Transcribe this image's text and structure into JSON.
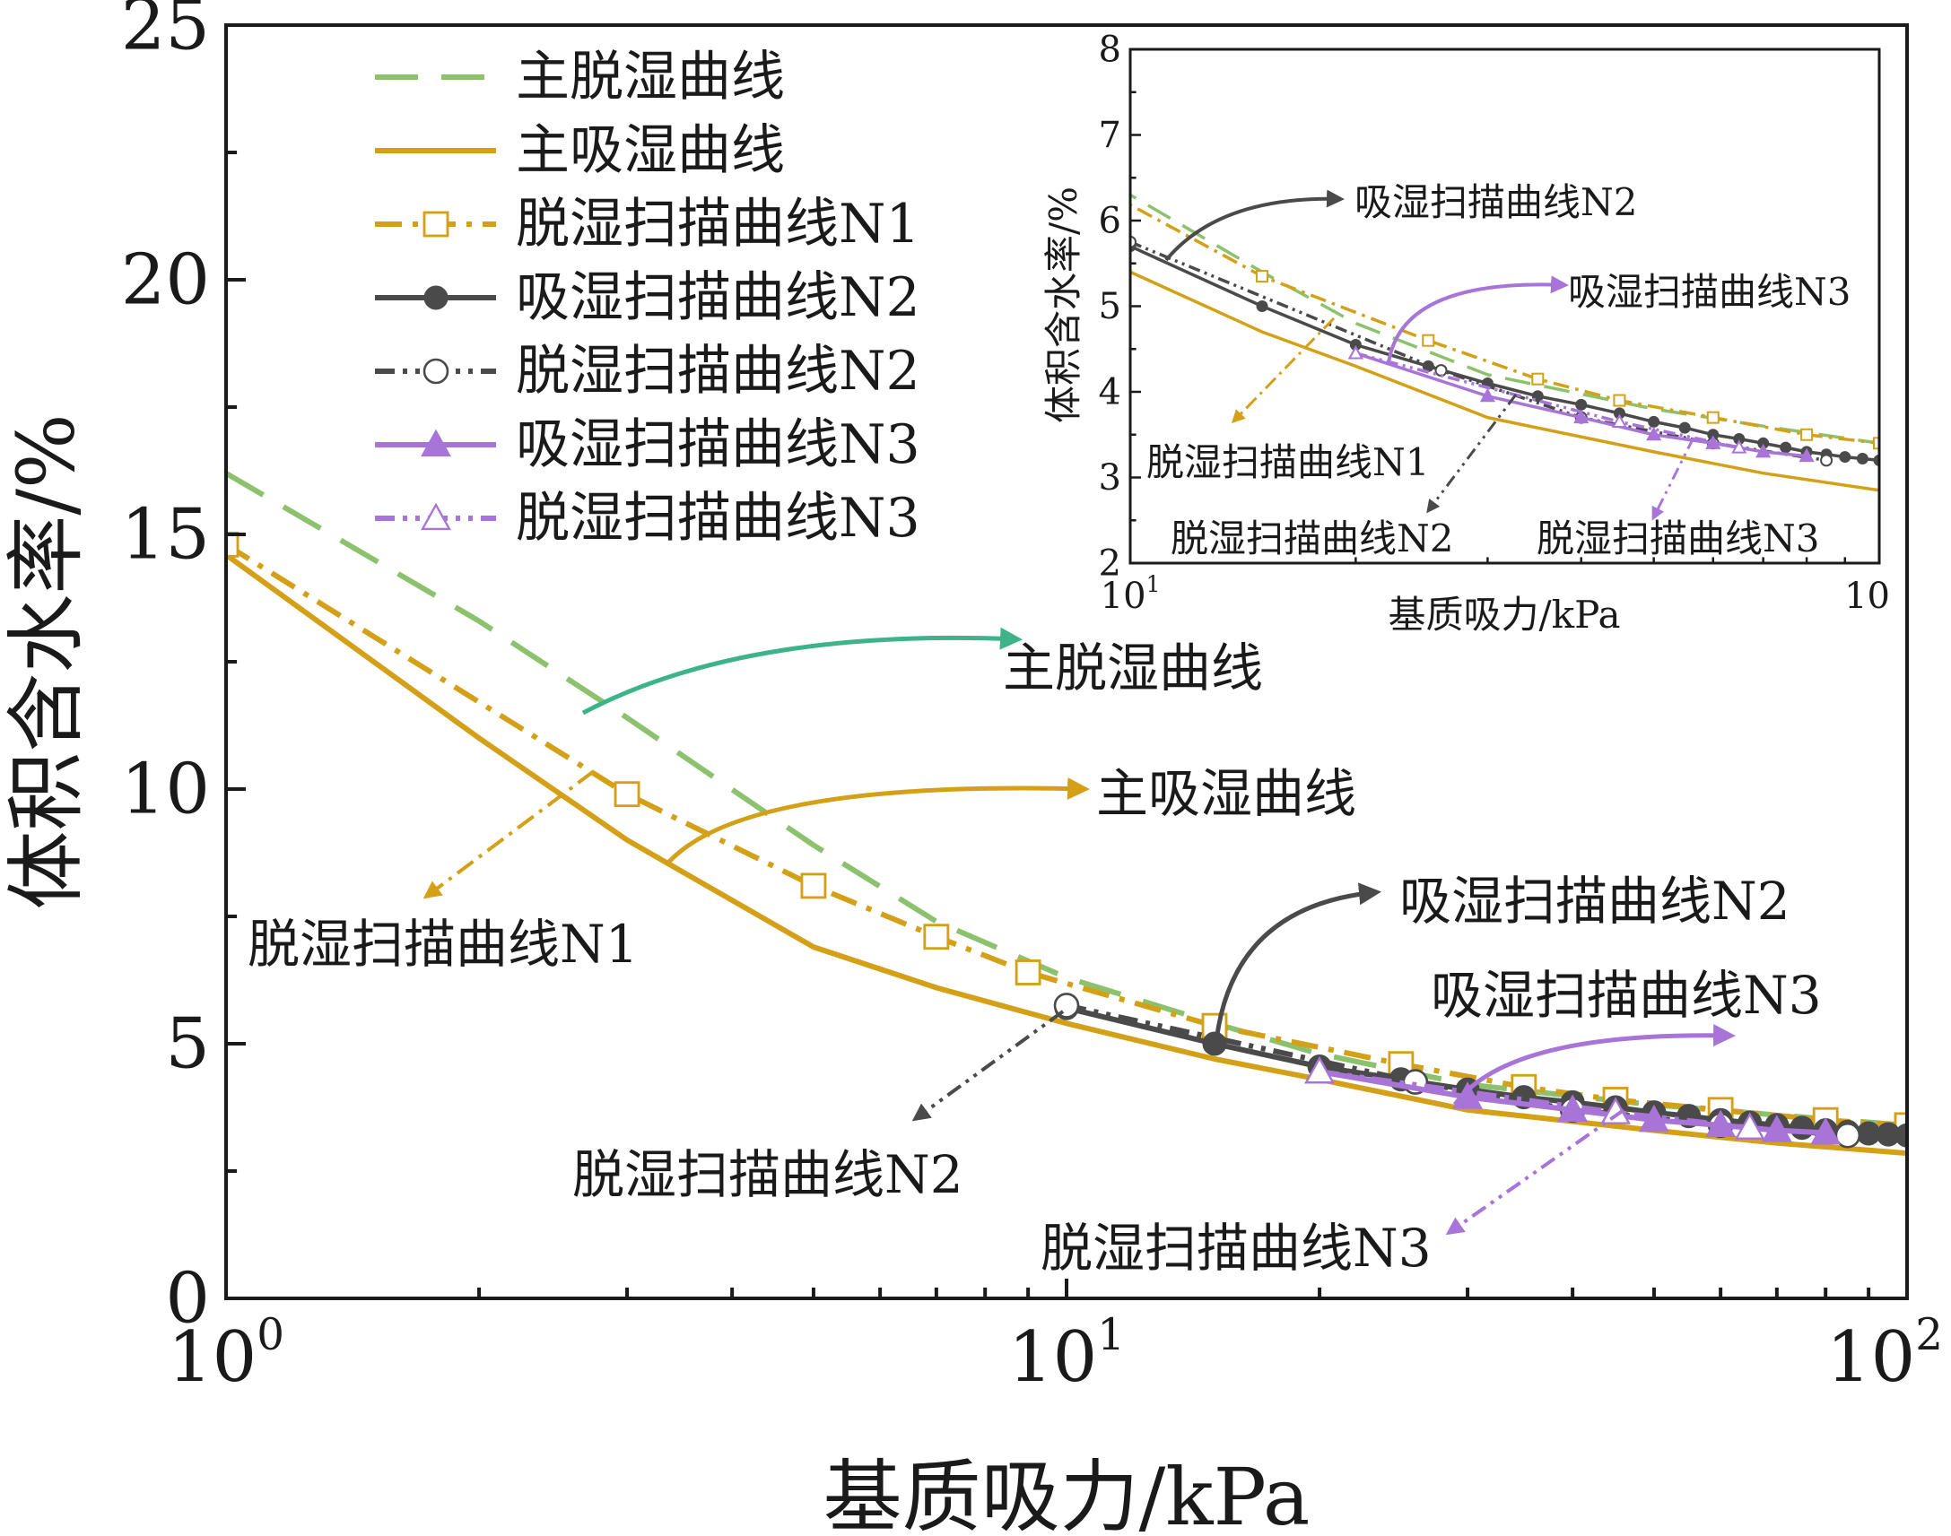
{
  "chart_data": [
    {
      "type": "line",
      "panel": "main",
      "xlabel": "基质吸力/kPa",
      "ylabel": "体积含水率/%",
      "xscale": "log",
      "xlim": [
        1,
        100
      ],
      "ylim": [
        0,
        25
      ],
      "xticks": [
        {
          "value": 1,
          "label": "10",
          "exp": "0"
        },
        {
          "value": 10,
          "label": "10",
          "exp": "1"
        },
        {
          "value": 100,
          "label": "10",
          "exp": "2"
        }
      ],
      "yticks": [
        0,
        5,
        10,
        15,
        20,
        25
      ],
      "legend_position": "top-left",
      "series": [
        {
          "name": "主脱湿曲线",
          "color": "#8cc26e",
          "style": "dashed",
          "marker": "none",
          "x": [
            1,
            2,
            3,
            5,
            7,
            10,
            15,
            20,
            30,
            50,
            70,
            100
          ],
          "y": [
            16.2,
            13.3,
            11.4,
            8.9,
            7.4,
            6.3,
            5.4,
            4.8,
            4.2,
            3.8,
            3.6,
            3.4
          ]
        },
        {
          "name": "主吸湿曲线",
          "color": "#d4a017",
          "style": "solid",
          "marker": "none",
          "x": [
            1,
            2,
            3,
            5,
            7,
            10,
            15,
            20,
            30,
            50,
            70,
            100
          ],
          "y": [
            14.6,
            11.0,
            9.0,
            6.9,
            6.1,
            5.4,
            4.7,
            4.3,
            3.7,
            3.3,
            3.05,
            2.85
          ]
        },
        {
          "name": "脱湿扫描曲线N1",
          "color": "#d4a017",
          "style": "dashdot",
          "marker": "open-square",
          "x": [
            1,
            3,
            5,
            7,
            9,
            15,
            25,
            35,
            45,
            60,
            80,
            100
          ],
          "y": [
            14.8,
            9.9,
            8.1,
            7.1,
            6.4,
            5.35,
            4.6,
            4.15,
            3.9,
            3.7,
            3.5,
            3.4
          ]
        },
        {
          "name": "吸湿扫描曲线N2",
          "color": "#4a4a4a",
          "style": "solid",
          "marker": "filled-circle",
          "x": [
            10,
            15,
            20,
            25,
            30,
            35,
            40,
            45,
            50,
            55,
            60,
            65,
            70,
            75,
            80,
            85,
            90,
            95,
            100
          ],
          "y": [
            5.7,
            5.0,
            4.55,
            4.3,
            4.1,
            3.95,
            3.85,
            3.75,
            3.65,
            3.58,
            3.5,
            3.45,
            3.4,
            3.35,
            3.3,
            3.27,
            3.24,
            3.22,
            3.2
          ]
        },
        {
          "name": "脱湿扫描曲线N2",
          "color": "#4a4a4a",
          "style": "dashdotdot",
          "marker": "open-circle",
          "x": [
            10,
            26,
            40,
            60,
            85
          ],
          "y": [
            5.75,
            4.25,
            3.7,
            3.4,
            3.2
          ]
        },
        {
          "name": "吸湿扫描曲线N3",
          "color": "#a874d8",
          "style": "solid",
          "marker": "filled-triangle",
          "x": [
            20,
            30,
            40,
            50,
            60,
            70,
            80
          ],
          "y": [
            4.45,
            3.95,
            3.7,
            3.5,
            3.4,
            3.3,
            3.25
          ]
        },
        {
          "name": "脱湿扫描曲线N3",
          "color": "#a874d8",
          "style": "dashdotdot",
          "marker": "open-triangle",
          "x": [
            20,
            45,
            65
          ],
          "y": [
            4.45,
            3.65,
            3.35
          ]
        }
      ],
      "annotations": [
        "主脱湿曲线",
        "主吸湿曲线",
        "脱湿扫描曲线N1",
        "吸湿扫描曲线N2",
        "脱湿扫描曲线N2",
        "吸湿扫描曲线N3",
        "脱湿扫描曲线N3"
      ]
    },
    {
      "type": "line",
      "panel": "inset",
      "xlabel": "基质吸力/kPa",
      "ylabel": "体积含水率/%",
      "xscale": "log",
      "xlim": [
        10,
        100
      ],
      "ylim": [
        2,
        8
      ],
      "xticks": [
        {
          "value": 10,
          "label": "10",
          "exp": "1"
        },
        {
          "value": 100,
          "label": "10",
          "exp": ""
        }
      ],
      "yticks": [
        2,
        3,
        4,
        5,
        6,
        7,
        8
      ],
      "annotations": [
        "吸湿扫描曲线N2",
        "吸湿扫描曲线N3",
        "脱湿扫描曲线N1",
        "脱湿扫描曲线N2",
        "脱湿扫描曲线N3"
      ]
    }
  ],
  "colors": {
    "green": "#8cc26e",
    "gold": "#d4a017",
    "dark": "#4a4a4a",
    "purple": "#a874d8",
    "teal_arrow": "#3db38a"
  }
}
